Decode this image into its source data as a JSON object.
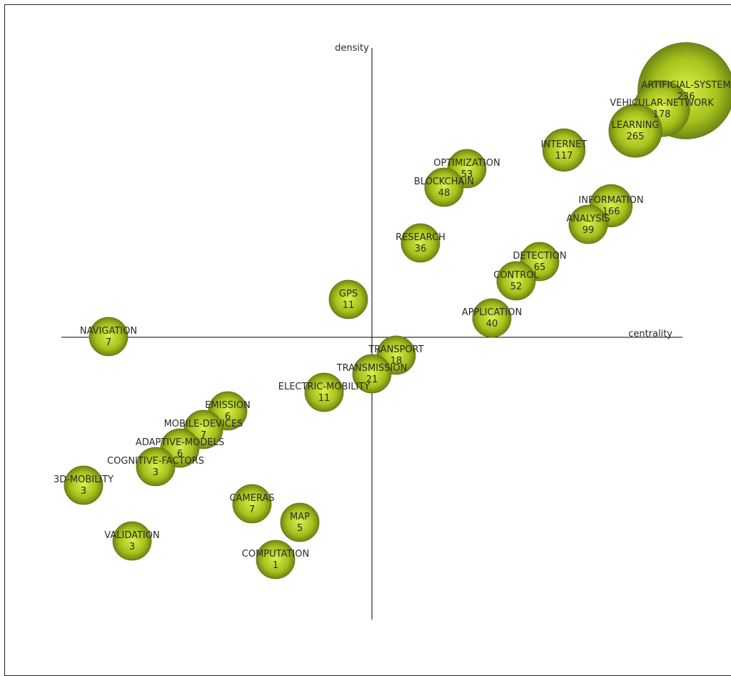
{
  "chart_data": {
    "type": "scatter",
    "subtype": "strategic-diagram",
    "xlabel": "centrality",
    "ylabel": "density",
    "xlim": [
      -4.35,
      4.35
    ],
    "ylim": [
      -3.95,
      4.05
    ],
    "colors": {
      "bubble": "#a6c21c",
      "bubble_light": "#dcef4a",
      "bubble_dark": "#5d7410",
      "axis": "#000000",
      "text": "#2a2a2a"
    },
    "points": [
      {
        "name": "ARTIFICIAL-SYSTEM",
        "value": "236",
        "x": 4.4,
        "y": 3.45,
        "size": 1.0
      },
      {
        "name": "VEHICULAR-NETWORK",
        "value": "178",
        "x": 4.06,
        "y": 3.2,
        "size": 0.58
      },
      {
        "name": "LEARNING",
        "value": "265",
        "x": 3.69,
        "y": 2.89,
        "size": 0.55
      },
      {
        "name": "INTERNET",
        "value": "117",
        "x": 2.69,
        "y": 2.62,
        "size": 0.44
      },
      {
        "name": "OPTIMIZATION",
        "value": "53",
        "x": 1.33,
        "y": 2.36,
        "size": 0.4
      },
      {
        "name": "BLOCKCHAIN",
        "value": "48",
        "x": 1.01,
        "y": 2.1,
        "size": 0.4
      },
      {
        "name": "INFORMATION",
        "value": "166",
        "x": 3.35,
        "y": 1.84,
        "size": 0.44
      },
      {
        "name": "ANALYSIS",
        "value": "99",
        "x": 3.03,
        "y": 1.58,
        "size": 0.4
      },
      {
        "name": "RESEARCH",
        "value": "36",
        "x": 0.68,
        "y": 1.32,
        "size": 0.4
      },
      {
        "name": "DETECTION",
        "value": "65",
        "x": 2.35,
        "y": 1.06,
        "size": 0.4
      },
      {
        "name": "CONTROL",
        "value": "52",
        "x": 2.02,
        "y": 0.79,
        "size": 0.4
      },
      {
        "name": "GPS",
        "value": "11",
        "x": -0.33,
        "y": 0.53,
        "size": 0.4
      },
      {
        "name": "APPLICATION",
        "value": "40",
        "x": 1.68,
        "y": 0.27,
        "size": 0.4
      },
      {
        "name": "NAVIGATION",
        "value": "7",
        "x": -3.69,
        "y": 0.01,
        "size": 0.4
      },
      {
        "name": "TRANSPORT",
        "value": "18",
        "x": 0.34,
        "y": -0.25,
        "size": 0.4
      },
      {
        "name": "TRANSMISSION",
        "value": "21",
        "x": 0.0,
        "y": -0.51,
        "size": 0.4
      },
      {
        "name": "ELECTRIC-MOBILITY",
        "value": "11",
        "x": -0.67,
        "y": -0.77,
        "size": 0.4
      },
      {
        "name": "EMISSION",
        "value": "6",
        "x": -2.02,
        "y": -1.03,
        "size": 0.4
      },
      {
        "name": "MOBILE-DEVICES",
        "value": "7",
        "x": -2.36,
        "y": -1.29,
        "size": 0.4
      },
      {
        "name": "ADAPTIVE-MODELS",
        "value": "6",
        "x": -2.69,
        "y": -1.55,
        "size": 0.4
      },
      {
        "name": "COGNITIVE-FACTORS",
        "value": "3",
        "x": -3.03,
        "y": -1.81,
        "size": 0.4
      },
      {
        "name": "3D-MOBILITY",
        "value": "3",
        "x": -4.04,
        "y": -2.07,
        "size": 0.4
      },
      {
        "name": "CAMERAS",
        "value": "7",
        "x": -1.68,
        "y": -2.33,
        "size": 0.4
      },
      {
        "name": "MAP",
        "value": "5",
        "x": -1.01,
        "y": -2.59,
        "size": 0.4
      },
      {
        "name": "VALIDATION",
        "value": "3",
        "x": -3.36,
        "y": -2.85,
        "size": 0.4
      },
      {
        "name": "COMPUTATION",
        "value": "1",
        "x": -1.35,
        "y": -3.11,
        "size": 0.4
      }
    ],
    "grid": false,
    "legend": "none"
  }
}
